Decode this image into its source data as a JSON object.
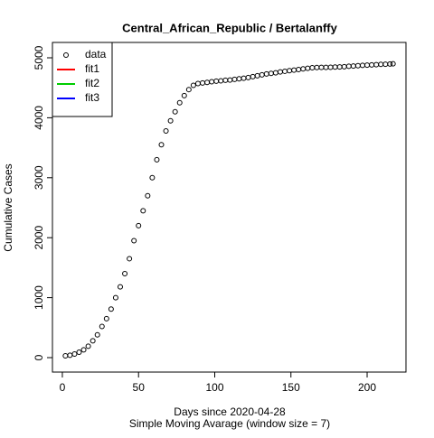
{
  "chart_data": {
    "type": "scatter",
    "title": "Central_African_Republic / Bertalanffy",
    "xlabel": "Days since 2020-04-28",
    "subtitle": "Simple Moving Avarage (window size = 7)",
    "ylabel": "Cumulative Cases",
    "xlim": [
      -6.5,
      225.5
    ],
    "ylim": [
      -241,
      5256
    ],
    "xticks": [
      0,
      50,
      100,
      150,
      200
    ],
    "yticks": [
      0,
      1000,
      2000,
      3000,
      4000,
      5000
    ],
    "legend": "top-left",
    "series": [
      {
        "name": "data",
        "color": "#000000",
        "x": [
          2,
          5,
          8,
          11,
          14,
          17,
          20,
          23,
          26,
          29,
          32,
          35,
          38,
          41,
          44,
          47,
          50,
          53,
          56,
          59,
          62,
          65,
          68,
          71,
          74,
          77,
          80,
          83,
          86,
          89,
          92,
          95,
          98,
          101,
          104,
          107,
          110,
          113,
          116,
          119,
          122,
          125,
          128,
          131,
          134,
          137,
          140,
          143,
          146,
          149,
          152,
          155,
          158,
          161,
          164,
          167,
          170,
          173,
          176,
          179,
          182,
          185,
          188,
          191,
          194,
          197,
          200,
          203,
          206,
          209,
          212,
          215,
          217
        ],
        "values": [
          30,
          40,
          60,
          90,
          130,
          190,
          280,
          380,
          520,
          650,
          810,
          1000,
          1180,
          1400,
          1650,
          1950,
          2200,
          2450,
          2700,
          3000,
          3300,
          3550,
          3780,
          3950,
          4100,
          4250,
          4370,
          4470,
          4540,
          4570,
          4580,
          4590,
          4600,
          4610,
          4615,
          4625,
          4630,
          4640,
          4650,
          4660,
          4670,
          4685,
          4700,
          4715,
          4730,
          4740,
          4750,
          4765,
          4775,
          4785,
          4795,
          4805,
          4815,
          4825,
          4835,
          4838,
          4840,
          4840,
          4842,
          4845,
          4848,
          4852,
          4858,
          4863,
          4868,
          4873,
          4878,
          4882,
          4886,
          4890,
          4893,
          4897,
          4900
        ]
      },
      {
        "name": "fit1",
        "color": "#ff0000"
      },
      {
        "name": "fit2",
        "color": "#00cd00"
      },
      {
        "name": "fit3",
        "color": "#0000ff"
      }
    ]
  }
}
